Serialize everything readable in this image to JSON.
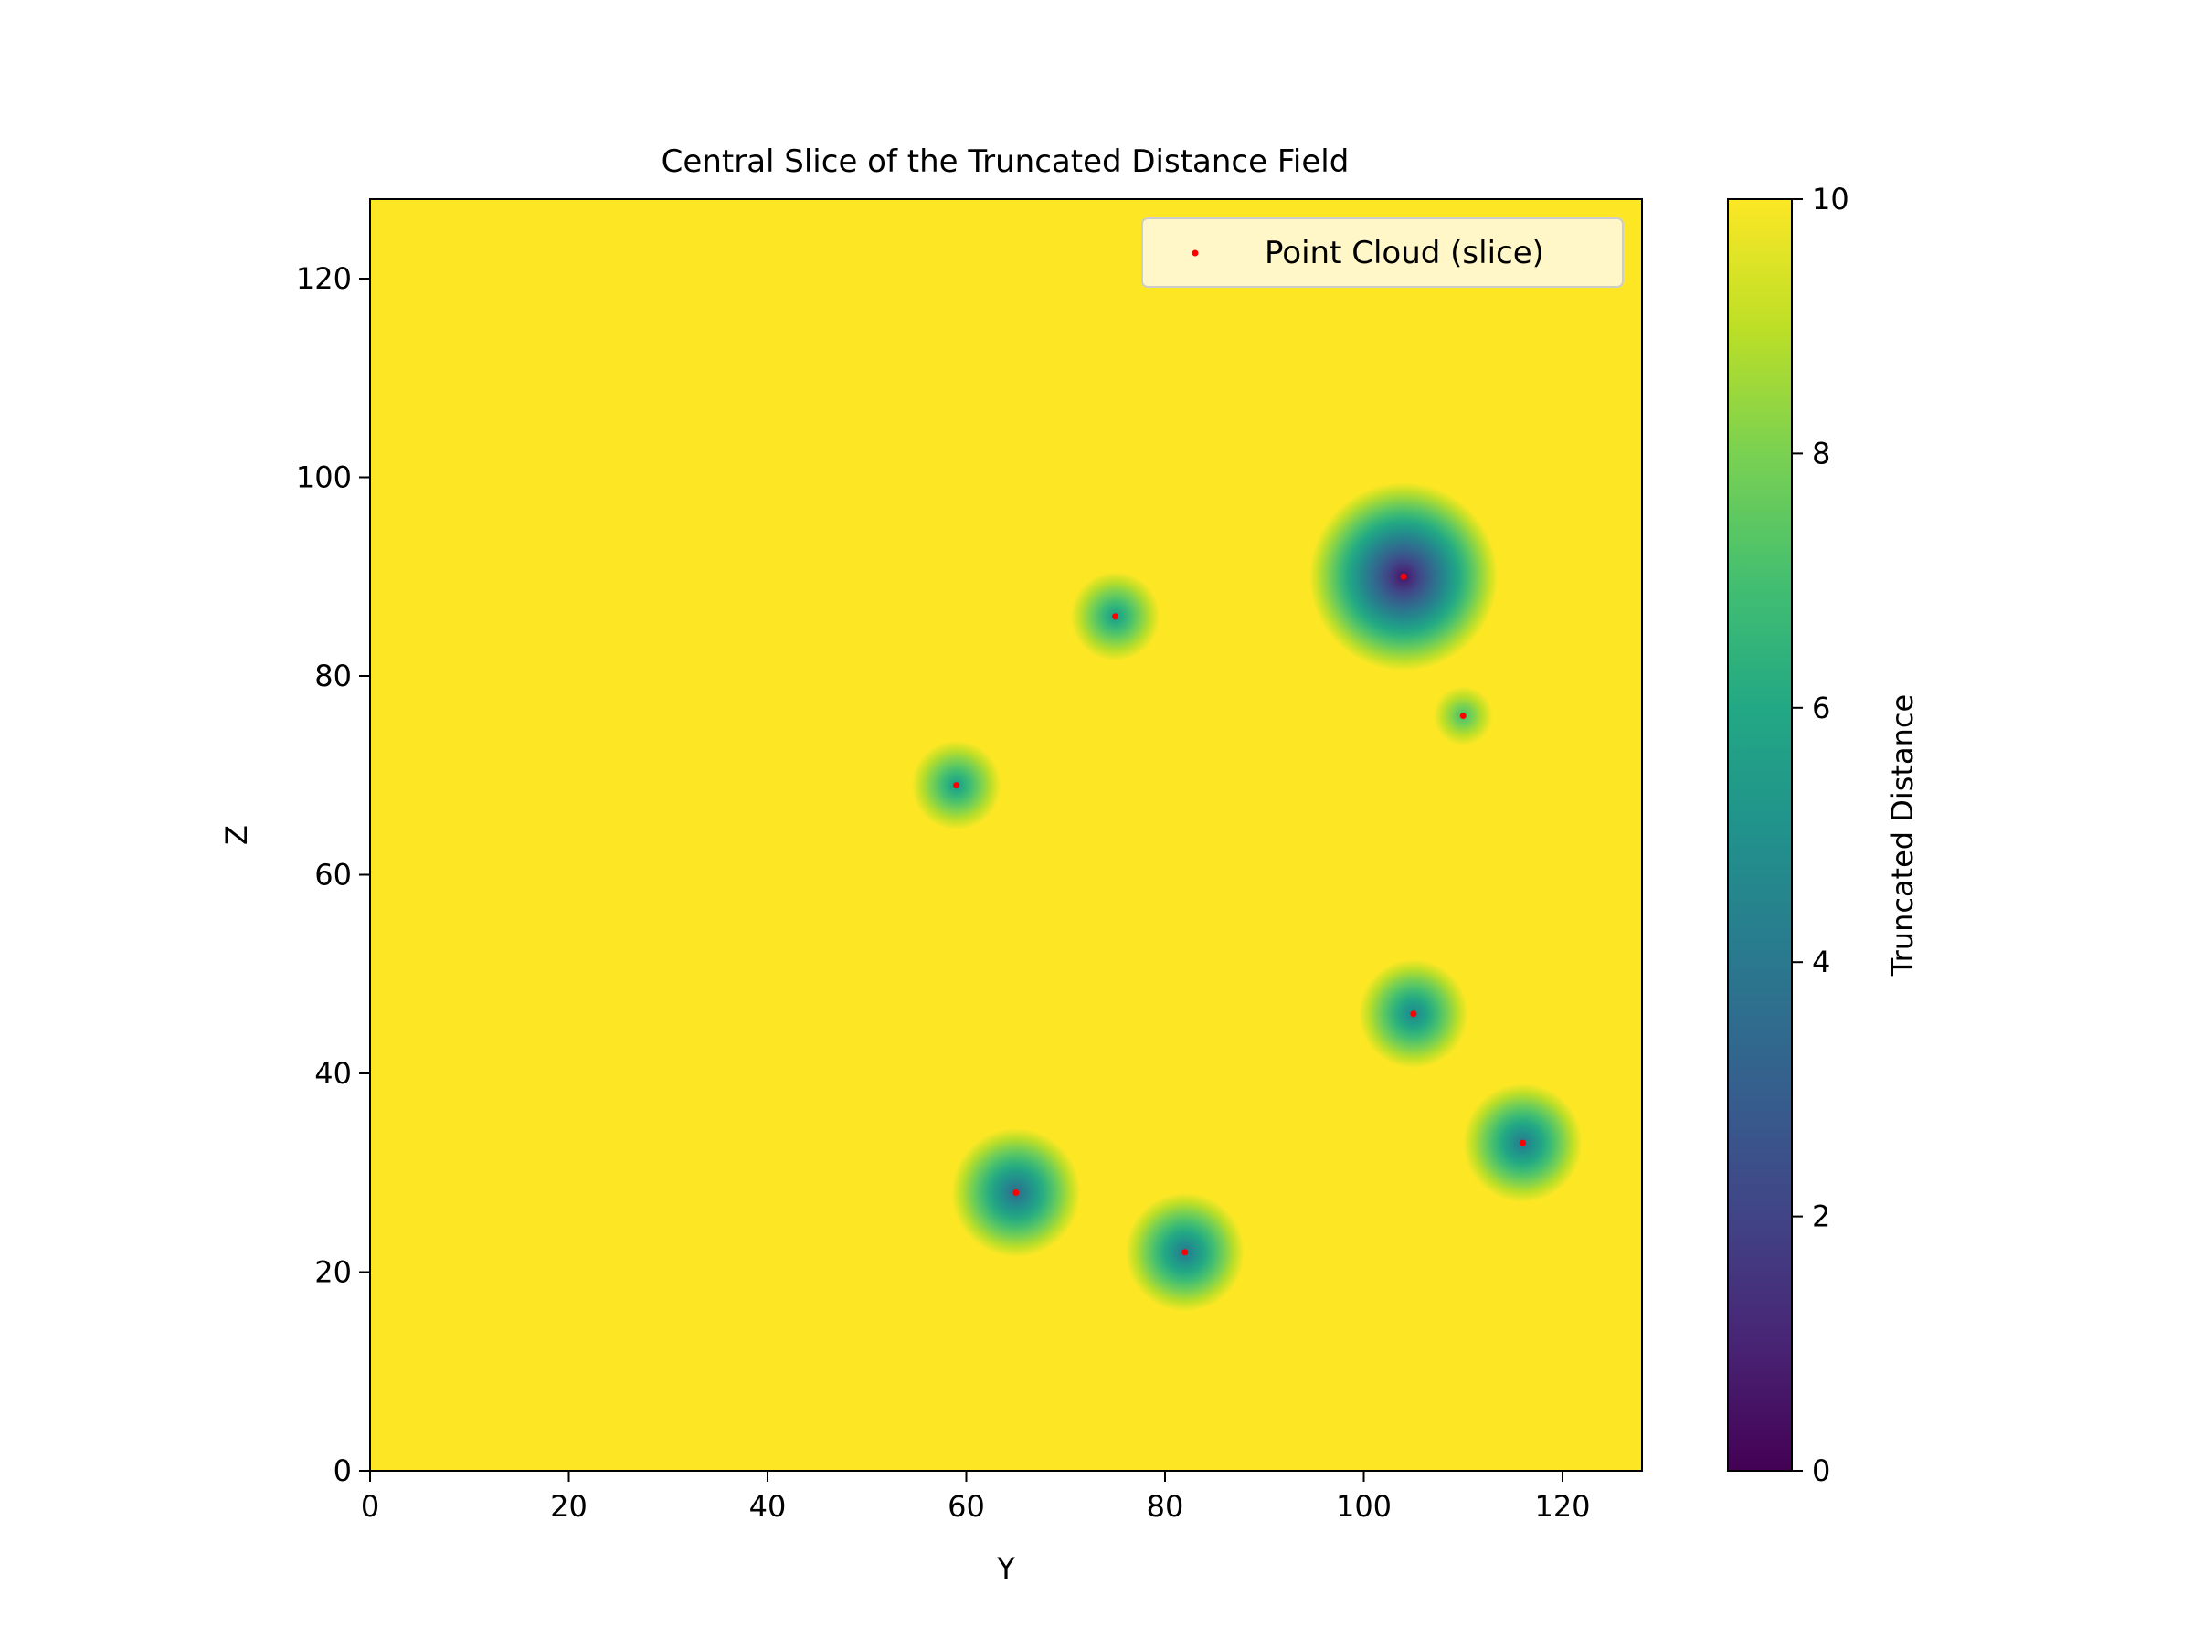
{
  "chart_data": {
    "type": "heatmap",
    "title": "Central Slice of the Truncated Distance Field",
    "xlabel": "Y",
    "ylabel": "Z",
    "xlim": [
      0,
      128
    ],
    "ylim": [
      0,
      128
    ],
    "x_ticks": [
      0,
      20,
      40,
      60,
      80,
      100,
      120
    ],
    "y_ticks": [
      0,
      20,
      40,
      60,
      80,
      100,
      120
    ],
    "colormap": "viridis",
    "colorbar": {
      "label": "Truncated Distance",
      "range": [
        0,
        10
      ],
      "ticks": [
        0,
        2,
        4,
        6,
        8,
        10
      ]
    },
    "truncation": 10,
    "field_min_values": [
      {
        "y": 59,
        "z": 69,
        "min": 5.5
      },
      {
        "y": 75,
        "z": 86,
        "min": 5.5
      },
      {
        "y": 104,
        "z": 90,
        "min": 0.5
      },
      {
        "y": 110,
        "z": 76,
        "min": 7.0
      },
      {
        "y": 105,
        "z": 46,
        "min": 4.5
      },
      {
        "y": 116,
        "z": 33,
        "min": 4.0
      },
      {
        "y": 65,
        "z": 28,
        "min": 3.5
      },
      {
        "y": 82,
        "z": 22,
        "min": 4.0
      }
    ],
    "series": [
      {
        "name": "Point Cloud (slice)",
        "type": "scatter",
        "color": "#ff0000",
        "x": [
          59,
          75,
          104,
          110,
          105,
          116,
          65,
          82
        ],
        "y": [
          69,
          86,
          90,
          76,
          46,
          33,
          28,
          22
        ]
      }
    ],
    "legend_position": "top-right",
    "grid": false
  }
}
